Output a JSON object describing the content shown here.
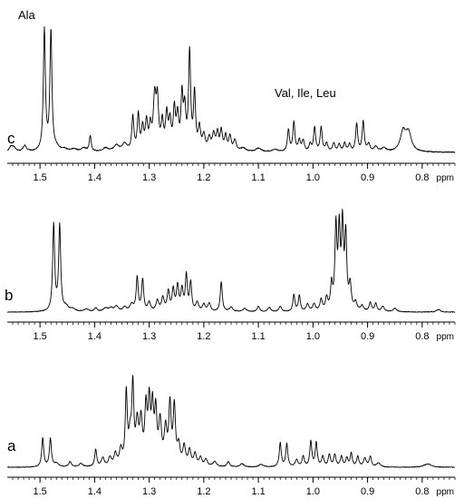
{
  "chart_data": {
    "type": "line",
    "x_axis": {
      "range": [
        1.56,
        0.74
      ],
      "reversed": true,
      "major_ticks": [
        1.5,
        1.4,
        1.3,
        1.2,
        1.1,
        1.0,
        0.9,
        0.8
      ],
      "tick_labels": [
        "1.5",
        "1.4",
        "1.3",
        "1.2",
        "1.1",
        "1.0",
        "0.9",
        "0.8"
      ],
      "minor_tick_step": 0.01,
      "unit": "ppm"
    },
    "grid": false,
    "panels": [
      {
        "label": "c",
        "annotations": [
          "Ala",
          "Val, Ile, Leu"
        ],
        "baseline": 0.03,
        "noise": 0.004,
        "peaks": [
          {
            "ppm": 1.553,
            "height": 0.04,
            "width": 0.004
          },
          {
            "ppm": 1.548,
            "height": 0.03,
            "width": 0.004
          },
          {
            "ppm": 1.528,
            "height": 0.05,
            "width": 0.004
          },
          {
            "ppm": 1.492,
            "height": 1.0,
            "width": 0.0022
          },
          {
            "ppm": 1.48,
            "height": 0.98,
            "width": 0.0022
          },
          {
            "ppm": 1.47,
            "height": 0.03,
            "width": 0.006
          },
          {
            "ppm": 1.455,
            "height": 0.02,
            "width": 0.006
          },
          {
            "ppm": 1.438,
            "height": 0.02,
            "width": 0.006
          },
          {
            "ppm": 1.42,
            "height": 0.03,
            "width": 0.006
          },
          {
            "ppm": 1.408,
            "height": 0.13,
            "width": 0.002
          },
          {
            "ppm": 1.38,
            "height": 0.03,
            "width": 0.006
          },
          {
            "ppm": 1.36,
            "height": 0.05,
            "width": 0.006
          },
          {
            "ppm": 1.345,
            "height": 0.06,
            "width": 0.005
          },
          {
            "ppm": 1.33,
            "height": 0.28,
            "width": 0.0022
          },
          {
            "ppm": 1.32,
            "height": 0.29,
            "width": 0.0022
          },
          {
            "ppm": 1.312,
            "height": 0.18,
            "width": 0.0025
          },
          {
            "ppm": 1.305,
            "height": 0.22,
            "width": 0.0025
          },
          {
            "ppm": 1.298,
            "height": 0.18,
            "width": 0.0025
          },
          {
            "ppm": 1.29,
            "height": 0.42,
            "width": 0.003
          },
          {
            "ppm": 1.285,
            "height": 0.38,
            "width": 0.0025
          },
          {
            "ppm": 1.276,
            "height": 0.22,
            "width": 0.0025
          },
          {
            "ppm": 1.268,
            "height": 0.28,
            "width": 0.0025
          },
          {
            "ppm": 1.262,
            "height": 0.22,
            "width": 0.0025
          },
          {
            "ppm": 1.254,
            "height": 0.32,
            "width": 0.0025
          },
          {
            "ppm": 1.248,
            "height": 0.26,
            "width": 0.0025
          },
          {
            "ppm": 1.24,
            "height": 0.42,
            "width": 0.0022
          },
          {
            "ppm": 1.235,
            "height": 0.32,
            "width": 0.0025
          },
          {
            "ppm": 1.226,
            "height": 0.8,
            "width": 0.0022
          },
          {
            "ppm": 1.217,
            "height": 0.46,
            "width": 0.0022
          },
          {
            "ppm": 1.208,
            "height": 0.18,
            "width": 0.0025
          },
          {
            "ppm": 1.2,
            "height": 0.12,
            "width": 0.003
          },
          {
            "ppm": 1.19,
            "height": 0.1,
            "width": 0.003
          },
          {
            "ppm": 1.182,
            "height": 0.13,
            "width": 0.003
          },
          {
            "ppm": 1.175,
            "height": 0.14,
            "width": 0.0025
          },
          {
            "ppm": 1.168,
            "height": 0.16,
            "width": 0.0025
          },
          {
            "ppm": 1.16,
            "height": 0.12,
            "width": 0.0025
          },
          {
            "ppm": 1.152,
            "height": 0.12,
            "width": 0.0025
          },
          {
            "ppm": 1.143,
            "height": 0.09,
            "width": 0.003
          },
          {
            "ppm": 1.128,
            "height": 0.03,
            "width": 0.006
          },
          {
            "ppm": 1.1,
            "height": 0.03,
            "width": 0.006
          },
          {
            "ppm": 1.07,
            "height": 0.02,
            "width": 0.006
          },
          {
            "ppm": 1.045,
            "height": 0.18,
            "width": 0.0022
          },
          {
            "ppm": 1.035,
            "height": 0.24,
            "width": 0.0022
          },
          {
            "ppm": 1.025,
            "height": 0.09,
            "width": 0.0025
          },
          {
            "ppm": 1.018,
            "height": 0.09,
            "width": 0.0025
          },
          {
            "ppm": 1.005,
            "height": 0.06,
            "width": 0.0025
          },
          {
            "ppm": 0.997,
            "height": 0.2,
            "width": 0.0022
          },
          {
            "ppm": 0.985,
            "height": 0.2,
            "width": 0.0022
          },
          {
            "ppm": 0.975,
            "height": 0.07,
            "width": 0.0025
          },
          {
            "ppm": 0.962,
            "height": 0.07,
            "width": 0.0025
          },
          {
            "ppm": 0.952,
            "height": 0.06,
            "width": 0.0025
          },
          {
            "ppm": 0.942,
            "height": 0.07,
            "width": 0.0025
          },
          {
            "ppm": 0.933,
            "height": 0.06,
            "width": 0.0025
          },
          {
            "ppm": 0.92,
            "height": 0.23,
            "width": 0.0022
          },
          {
            "ppm": 0.908,
            "height": 0.25,
            "width": 0.0022
          },
          {
            "ppm": 0.898,
            "height": 0.06,
            "width": 0.003
          },
          {
            "ppm": 0.885,
            "height": 0.04,
            "width": 0.004
          },
          {
            "ppm": 0.87,
            "height": 0.03,
            "width": 0.005
          },
          {
            "ppm": 0.835,
            "height": 0.16,
            "width": 0.006
          },
          {
            "ppm": 0.825,
            "height": 0.15,
            "width": 0.006
          }
        ]
      },
      {
        "label": "b",
        "annotations": [],
        "baseline": 0.03,
        "noise": 0.004,
        "peaks": [
          {
            "ppm": 1.475,
            "height": 0.98,
            "width": 0.0022
          },
          {
            "ppm": 1.464,
            "height": 0.97,
            "width": 0.0022
          },
          {
            "ppm": 1.452,
            "height": 0.05,
            "width": 0.005
          },
          {
            "ppm": 1.44,
            "height": 0.03,
            "width": 0.005
          },
          {
            "ppm": 1.415,
            "height": 0.03,
            "width": 0.005
          },
          {
            "ppm": 1.398,
            "height": 0.04,
            "width": 0.003
          },
          {
            "ppm": 1.38,
            "height": 0.04,
            "width": 0.005
          },
          {
            "ppm": 1.37,
            "height": 0.04,
            "width": 0.004
          },
          {
            "ppm": 1.36,
            "height": 0.06,
            "width": 0.004
          },
          {
            "ppm": 1.345,
            "height": 0.05,
            "width": 0.004
          },
          {
            "ppm": 1.332,
            "height": 0.08,
            "width": 0.004
          },
          {
            "ppm": 1.322,
            "height": 0.38,
            "width": 0.0022
          },
          {
            "ppm": 1.312,
            "height": 0.36,
            "width": 0.0022
          },
          {
            "ppm": 1.3,
            "height": 0.1,
            "width": 0.003
          },
          {
            "ppm": 1.285,
            "height": 0.12,
            "width": 0.003
          },
          {
            "ppm": 1.275,
            "height": 0.15,
            "width": 0.003
          },
          {
            "ppm": 1.265,
            "height": 0.22,
            "width": 0.0025
          },
          {
            "ppm": 1.256,
            "height": 0.24,
            "width": 0.0025
          },
          {
            "ppm": 1.248,
            "height": 0.28,
            "width": 0.0025
          },
          {
            "ppm": 1.24,
            "height": 0.24,
            "width": 0.0025
          },
          {
            "ppm": 1.232,
            "height": 0.4,
            "width": 0.0022
          },
          {
            "ppm": 1.224,
            "height": 0.32,
            "width": 0.0022
          },
          {
            "ppm": 1.212,
            "height": 0.1,
            "width": 0.003
          },
          {
            "ppm": 1.2,
            "height": 0.08,
            "width": 0.003
          },
          {
            "ppm": 1.19,
            "height": 0.09,
            "width": 0.003
          },
          {
            "ppm": 1.168,
            "height": 0.34,
            "width": 0.0022
          },
          {
            "ppm": 1.15,
            "height": 0.05,
            "width": 0.004
          },
          {
            "ppm": 1.125,
            "height": 0.04,
            "width": 0.004
          },
          {
            "ppm": 1.1,
            "height": 0.06,
            "width": 0.003
          },
          {
            "ppm": 1.08,
            "height": 0.05,
            "width": 0.003
          },
          {
            "ppm": 1.06,
            "height": 0.06,
            "width": 0.003
          },
          {
            "ppm": 1.035,
            "height": 0.19,
            "width": 0.0022
          },
          {
            "ppm": 1.025,
            "height": 0.18,
            "width": 0.0022
          },
          {
            "ppm": 1.01,
            "height": 0.08,
            "width": 0.003
          },
          {
            "ppm": 0.998,
            "height": 0.08,
            "width": 0.003
          },
          {
            "ppm": 0.985,
            "height": 0.13,
            "width": 0.0025
          },
          {
            "ppm": 0.975,
            "height": 0.14,
            "width": 0.0025
          },
          {
            "ppm": 0.966,
            "height": 0.28,
            "width": 0.0022
          },
          {
            "ppm": 0.958,
            "height": 0.92,
            "width": 0.0022
          },
          {
            "ppm": 0.952,
            "height": 0.85,
            "width": 0.0022
          },
          {
            "ppm": 0.946,
            "height": 0.93,
            "width": 0.0022
          },
          {
            "ppm": 0.94,
            "height": 0.82,
            "width": 0.0022
          },
          {
            "ppm": 0.932,
            "height": 0.28,
            "width": 0.0025
          },
          {
            "ppm": 0.922,
            "height": 0.09,
            "width": 0.003
          },
          {
            "ppm": 0.91,
            "height": 0.06,
            "width": 0.003
          },
          {
            "ppm": 0.895,
            "height": 0.1,
            "width": 0.0025
          },
          {
            "ppm": 0.885,
            "height": 0.09,
            "width": 0.0025
          },
          {
            "ppm": 0.872,
            "height": 0.06,
            "width": 0.003
          },
          {
            "ppm": 0.85,
            "height": 0.04,
            "width": 0.004
          },
          {
            "ppm": 0.77,
            "height": 0.03,
            "width": 0.004
          }
        ]
      },
      {
        "label": "a",
        "annotations": [],
        "baseline": 0.03,
        "noise": 0.004,
        "peaks": [
          {
            "ppm": 1.495,
            "height": 0.34,
            "width": 0.0022
          },
          {
            "ppm": 1.481,
            "height": 0.33,
            "width": 0.0022
          },
          {
            "ppm": 1.47,
            "height": 0.04,
            "width": 0.005
          },
          {
            "ppm": 1.445,
            "height": 0.06,
            "width": 0.003
          },
          {
            "ppm": 1.425,
            "height": 0.04,
            "width": 0.004
          },
          {
            "ppm": 1.398,
            "height": 0.2,
            "width": 0.0022
          },
          {
            "ppm": 1.385,
            "height": 0.1,
            "width": 0.003
          },
          {
            "ppm": 1.372,
            "height": 0.1,
            "width": 0.003
          },
          {
            "ppm": 1.362,
            "height": 0.14,
            "width": 0.003
          },
          {
            "ppm": 1.352,
            "height": 0.18,
            "width": 0.003
          },
          {
            "ppm": 1.342,
            "height": 0.83,
            "width": 0.0022
          },
          {
            "ppm": 1.335,
            "height": 0.3,
            "width": 0.003
          },
          {
            "ppm": 1.33,
            "height": 0.88,
            "width": 0.0022
          },
          {
            "ppm": 1.322,
            "height": 0.45,
            "width": 0.003
          },
          {
            "ppm": 1.315,
            "height": 0.48,
            "width": 0.003
          },
          {
            "ppm": 1.306,
            "height": 0.62,
            "width": 0.0025
          },
          {
            "ppm": 1.3,
            "height": 0.68,
            "width": 0.0025
          },
          {
            "ppm": 1.294,
            "height": 0.62,
            "width": 0.0025
          },
          {
            "ppm": 1.288,
            "height": 0.58,
            "width": 0.0025
          },
          {
            "ppm": 1.28,
            "height": 0.48,
            "width": 0.003
          },
          {
            "ppm": 1.27,
            "height": 0.4,
            "width": 0.003
          },
          {
            "ppm": 1.262,
            "height": 0.68,
            "width": 0.0025
          },
          {
            "ppm": 1.254,
            "height": 0.67,
            "width": 0.0025
          },
          {
            "ppm": 1.246,
            "height": 0.22,
            "width": 0.003
          },
          {
            "ppm": 1.236,
            "height": 0.22,
            "width": 0.003
          },
          {
            "ppm": 1.226,
            "height": 0.18,
            "width": 0.003
          },
          {
            "ppm": 1.216,
            "height": 0.14,
            "width": 0.003
          },
          {
            "ppm": 1.206,
            "height": 0.1,
            "width": 0.003
          },
          {
            "ppm": 1.196,
            "height": 0.08,
            "width": 0.003
          },
          {
            "ppm": 1.18,
            "height": 0.06,
            "width": 0.004
          },
          {
            "ppm": 1.155,
            "height": 0.06,
            "width": 0.003
          },
          {
            "ppm": 1.13,
            "height": 0.04,
            "width": 0.004
          },
          {
            "ppm": 1.095,
            "height": 0.03,
            "width": 0.005
          },
          {
            "ppm": 1.06,
            "height": 0.28,
            "width": 0.0022
          },
          {
            "ppm": 1.048,
            "height": 0.27,
            "width": 0.0022
          },
          {
            "ppm": 1.03,
            "height": 0.08,
            "width": 0.003
          },
          {
            "ppm": 1.018,
            "height": 0.12,
            "width": 0.0025
          },
          {
            "ppm": 1.004,
            "height": 0.3,
            "width": 0.0022
          },
          {
            "ppm": 0.994,
            "height": 0.28,
            "width": 0.0022
          },
          {
            "ppm": 0.982,
            "height": 0.12,
            "width": 0.0025
          },
          {
            "ppm": 0.97,
            "height": 0.14,
            "width": 0.0025
          },
          {
            "ppm": 0.96,
            "height": 0.14,
            "width": 0.0025
          },
          {
            "ppm": 0.948,
            "height": 0.12,
            "width": 0.0025
          },
          {
            "ppm": 0.938,
            "height": 0.1,
            "width": 0.0025
          },
          {
            "ppm": 0.93,
            "height": 0.16,
            "width": 0.0022
          },
          {
            "ppm": 0.918,
            "height": 0.12,
            "width": 0.0025
          },
          {
            "ppm": 0.905,
            "height": 0.1,
            "width": 0.003
          },
          {
            "ppm": 0.895,
            "height": 0.12,
            "width": 0.0025
          },
          {
            "ppm": 0.88,
            "height": 0.05,
            "width": 0.004
          },
          {
            "ppm": 0.79,
            "height": 0.04,
            "width": 0.008
          }
        ]
      }
    ]
  }
}
